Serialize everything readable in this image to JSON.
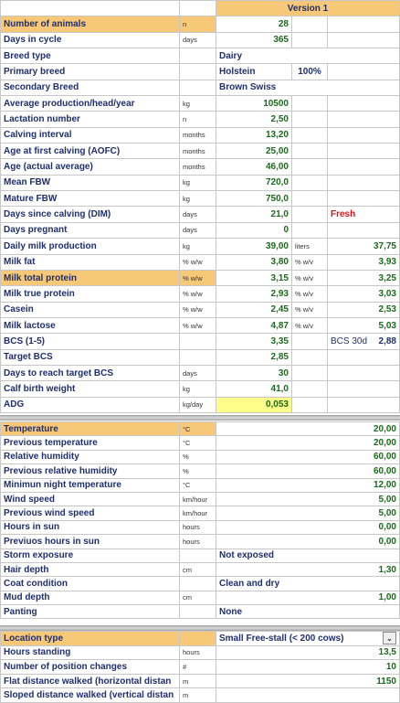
{
  "header": {
    "version": "Version 1"
  },
  "animal": [
    {
      "label": "Number of animals",
      "unit": "n",
      "value": "28",
      "highlight": true
    },
    {
      "label": "Days in cycle",
      "unit": "days",
      "value": "365"
    },
    {
      "label": "Breed type",
      "unit": "",
      "text": "Dairy"
    },
    {
      "label": "Primary breed",
      "unit": "",
      "text": "Holstein",
      "extra": "100%"
    },
    {
      "label": "Secondary Breed",
      "unit": "",
      "text": "Brown Swiss"
    },
    {
      "label": "Average production/head/year",
      "unit": "kg",
      "value": "10500"
    },
    {
      "label": "Lactation number",
      "unit": "n",
      "value": "2,50"
    },
    {
      "label": "Calving interval",
      "unit": "months",
      "value": "13,20"
    },
    {
      "label": "Age at first calving (AOFC)",
      "unit": "months",
      "value": "25,00"
    },
    {
      "label": "Age (actual average)",
      "unit": "months",
      "value": "46,00"
    },
    {
      "label": "Mean FBW",
      "unit": "kg",
      "value": "720,0"
    },
    {
      "label": "Mature FBW",
      "unit": "kg",
      "value": "750,0"
    },
    {
      "label": "Days since calving (DIM)",
      "unit": "days",
      "value": "21,0",
      "right_text": "Fresh"
    },
    {
      "label": "Days pregnant",
      "unit": "days",
      "value": "0"
    },
    {
      "label": "Daily milk production",
      "unit": "kg",
      "value": "39,00",
      "unit2": "liters",
      "right": "37,75"
    },
    {
      "label": "Milk fat",
      "unit": "% w/w",
      "value": "3,80",
      "unit2": "% w/v",
      "right": "3,93"
    },
    {
      "label": "Milk total protein",
      "unit": "% w/w",
      "value": "3,15",
      "unit2": "% w/v",
      "right": "3,25",
      "highlight": true
    },
    {
      "label": "Milk true protein",
      "unit": "% w/w",
      "value": "2,93",
      "unit2": "% w/v",
      "right": "3,03"
    },
    {
      "label": "Casein",
      "unit": "% w/w",
      "value": "2,45",
      "unit2": "% w/v",
      "right": "2,53"
    },
    {
      "label": "Milk lactose",
      "unit": "% w/w",
      "value": "4,87",
      "unit2": "% w/v",
      "right": "5,03"
    },
    {
      "label": "BCS (1-5)",
      "unit": "",
      "value": "3,35",
      "right_label": "BCS 30d",
      "right": "2,88"
    },
    {
      "label": "Target BCS",
      "unit": "",
      "value": "2,85"
    },
    {
      "label": "Days to reach target BCS",
      "unit": "days",
      "value": "30"
    },
    {
      "label": "Calf birth weight",
      "unit": "kg",
      "value": "41,0"
    },
    {
      "label": "ADG",
      "unit": "kg/day",
      "value": "0,053",
      "yellow": true
    }
  ],
  "environment": [
    {
      "label": "Temperature",
      "unit": "°C",
      "value": "20,00",
      "highlight": true
    },
    {
      "label": "Previous temperature",
      "unit": "°C",
      "value": "20,00"
    },
    {
      "label": "Relative humidity",
      "unit": "%",
      "value": "60,00"
    },
    {
      "label": "Previous relative humidity",
      "unit": "%",
      "value": "60,00"
    },
    {
      "label": "Minimun night temperature",
      "unit": "°C",
      "value": "12,00"
    },
    {
      "label": "Wind speed",
      "unit": "km/hour",
      "value": "5,00"
    },
    {
      "label": "Previous wind speed",
      "unit": "km/hour",
      "value": "5,00"
    },
    {
      "label": "Hours in sun",
      "unit": "hours",
      "value": "0,00"
    },
    {
      "label": "Previuos hours in sun",
      "unit": "hours",
      "value": "0,00"
    },
    {
      "label": "Storm exposure",
      "unit": "",
      "text": "Not exposed"
    },
    {
      "label": "Hair depth",
      "unit": "cm",
      "value": "1,30"
    },
    {
      "label": "Coat condition",
      "unit": "",
      "text": "Clean and dry"
    },
    {
      "label": "Mud depth",
      "unit": "cm",
      "value": "1,00"
    },
    {
      "label": "Panting",
      "unit": "",
      "text": "None"
    }
  ],
  "location": [
    {
      "label": "Location type",
      "unit": "",
      "text": "Small Free-stall (< 200 cows)",
      "dropdown": true,
      "highlight": true
    },
    {
      "label": "Hours standing",
      "unit": "hours",
      "value": "13,5"
    },
    {
      "label": "Number of position changes",
      "unit": "#",
      "value": "10"
    },
    {
      "label": "Flat distance walked (horizontal distan",
      "unit": "m",
      "value": "1150"
    },
    {
      "label": "Sloped distance walked (vertical distan",
      "unit": "m",
      "value": ""
    }
  ],
  "colors": {
    "label": "#1f2f6e",
    "value": "#1a6b1a",
    "highlight": "#f6c878",
    "yellow": "#fdfd8a",
    "red": "#e01010"
  },
  "icons": {
    "dropdown": "chevron-down-icon"
  }
}
